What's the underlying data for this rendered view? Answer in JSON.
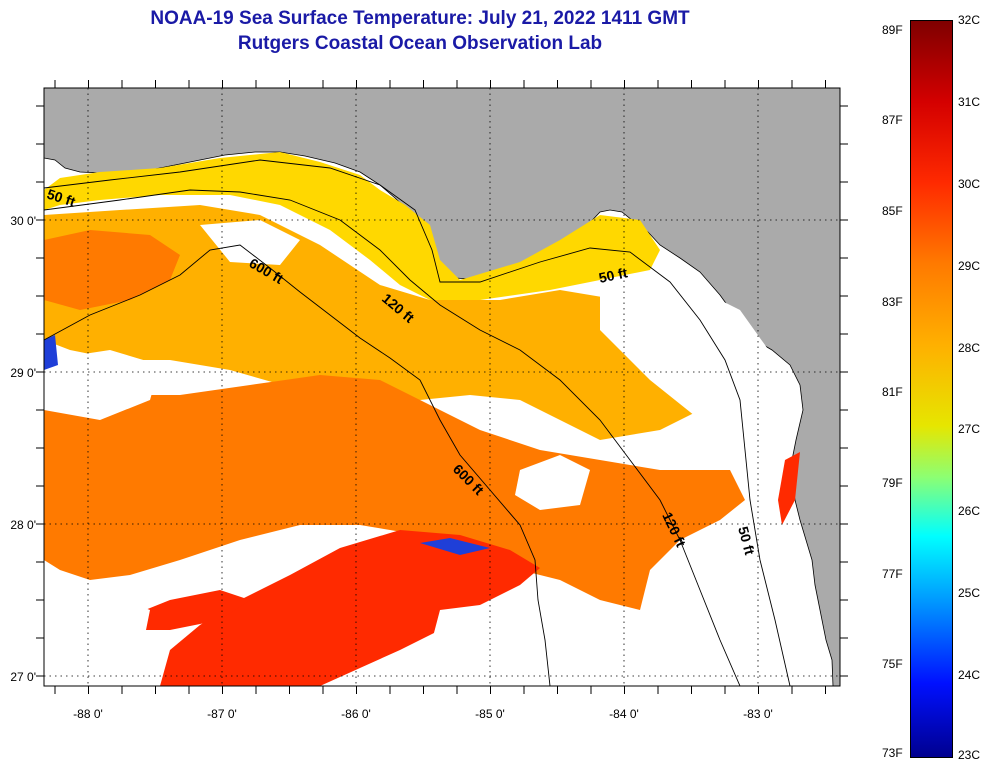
{
  "title": {
    "line1": "NOAA-19 Sea Surface Temperature:  July 21, 2022 1411 GMT",
    "line2": "Rutgers Coastal Ocean Observation Lab"
  },
  "colors": {
    "land": "#aaaaaa",
    "cloud": "#ffffff",
    "sst_hot": "#ff2a00",
    "sst_warm": "#ff7a00",
    "sst_mild": "#ffb000",
    "sst_cool": "#ffd800",
    "title": "#1a1aa6"
  },
  "map": {
    "lon_ticks": [
      "-88 0'",
      "-87 0'",
      "-86 0'",
      "-85 0'",
      "-84 0'",
      "-83 0'"
    ],
    "lat_ticks": [
      "30 0'",
      "29 0'",
      "28 0'",
      "27 0'"
    ],
    "contours": {
      "c50_west": "50 ft",
      "c50_north": "50 ft",
      "c50_east": "50 ft",
      "c120_north": "120 ft",
      "c120_east": "120 ft",
      "c600_north": "600 ft",
      "c600_south": "600 ft"
    }
  },
  "colorbar": {
    "fahrenheit": [
      "89F",
      "87F",
      "85F",
      "83F",
      "81F",
      "79F",
      "77F",
      "75F",
      "73F"
    ],
    "celsius": [
      "32C",
      "31C",
      "30C",
      "29C",
      "28C",
      "27C",
      "26C",
      "25C",
      "24C",
      "23C"
    ]
  }
}
